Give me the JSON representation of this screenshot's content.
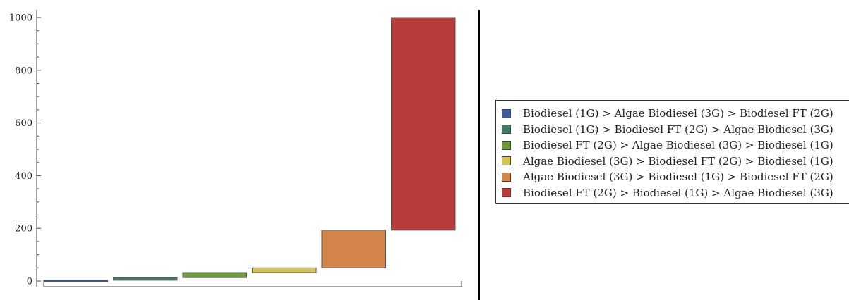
{
  "chart_data": {
    "type": "bar",
    "subtype": "waterfall",
    "yticks": [
      0,
      200,
      400,
      600,
      800,
      1000
    ],
    "ylim": [
      0,
      1000
    ],
    "grid": false,
    "legend_position": "right",
    "series": [
      {
        "name": "Biodiesel (1G) > Algae Biodiesel (3G) > Biodiesel FT (2G)",
        "start": 0,
        "end": 3,
        "color": "#3b5ba3"
      },
      {
        "name": "Biodiesel (1G) > Biodiesel FT (2G) > Algae Biodiesel (3G)",
        "start": 3,
        "end": 13,
        "color": "#3f7a64"
      },
      {
        "name": "Biodiesel FT (2G) > Algae Biodiesel (3G) > Biodiesel (1G)",
        "start": 13,
        "end": 32,
        "color": "#6a9a3a"
      },
      {
        "name": "Algae Biodiesel (3G) > Biodiesel FT (2G) > Biodiesel (1G)",
        "start": 32,
        "end": 50,
        "color": "#d4c44a"
      },
      {
        "name": "Algae Biodiesel (3G) > Biodiesel (1G) > Biodiesel FT (2G)",
        "start": 50,
        "end": 193,
        "color": "#d4854a"
      },
      {
        "name": "Biodiesel FT (2G) > Biodiesel (1G) > Algae Biodiesel (3G)",
        "start": 193,
        "end": 1000,
        "color": "#b83c3a"
      }
    ]
  }
}
